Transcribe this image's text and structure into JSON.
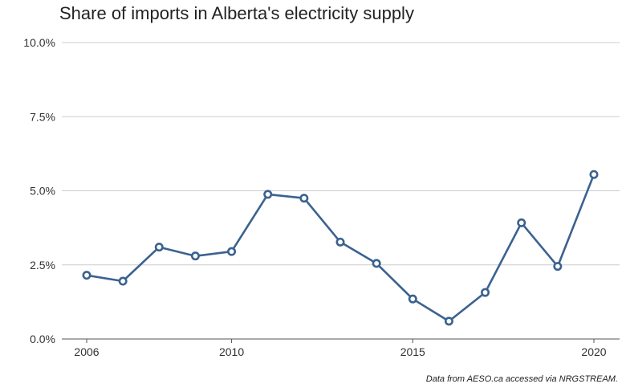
{
  "chart_data": {
    "type": "line",
    "title": "Share of imports in Alberta's electricity supply",
    "xlabel": "",
    "ylabel": "",
    "x": [
      2006,
      2007,
      2008,
      2009,
      2010,
      2011,
      2012,
      2013,
      2014,
      2015,
      2016,
      2017,
      2018,
      2019,
      2020
    ],
    "series": [
      {
        "values": [
          2.15,
          1.95,
          3.1,
          2.8,
          2.95,
          4.88,
          4.75,
          3.27,
          2.55,
          1.35,
          0.6,
          1.57,
          3.92,
          2.45,
          5.55
        ],
        "color": "#3b6290"
      }
    ],
    "ylim": [
      0,
      10
    ],
    "xlim": [
      2006,
      2020
    ],
    "y_ticks": [
      "0.0%",
      "2.5%",
      "5.0%",
      "7.5%",
      "10.0%"
    ],
    "y_tick_values": [
      0,
      2.5,
      5,
      7.5,
      10
    ],
    "x_ticks": [
      "2006",
      "2010",
      "2015",
      "2020"
    ],
    "x_tick_values": [
      2006,
      2010,
      2015,
      2020
    ],
    "grid": "horizontal",
    "legend": "none",
    "source_note": "Data from AESO.ca accessed via NRGSTREAM."
  },
  "colors": {
    "line": "#3b6290",
    "grid": "#cccccc",
    "axis": "#555555",
    "text": "#333333"
  }
}
